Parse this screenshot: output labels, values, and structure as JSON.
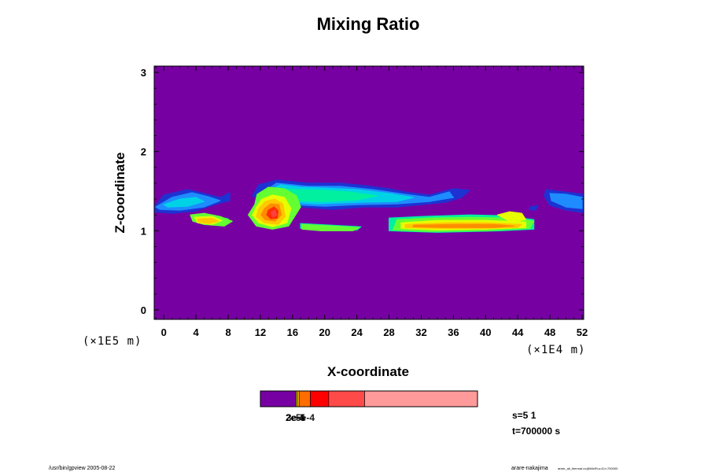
{
  "chart_data": {
    "type": "heatmap",
    "title": "Mixing Ratio",
    "xlabel": "X-coordinate",
    "ylabel": "Z-coordinate",
    "x_unit": "(×1E4 m)",
    "y_unit": "(×1E5 m)",
    "xlim": [
      -1.2,
      52.2
    ],
    "ylim": [
      -0.12,
      3.08
    ],
    "x_ticks": [
      0,
      4,
      8,
      12,
      16,
      20,
      24,
      28,
      32,
      36,
      40,
      44,
      48,
      52
    ],
    "x_tick_labels": [
      "0",
      "4",
      "8",
      "12",
      "16",
      "20",
      "24",
      "28",
      "32",
      "36",
      "40",
      "44",
      "48",
      "52"
    ],
    "y_ticks": [
      0,
      1,
      2,
      3
    ],
    "y_tick_labels": [
      "0",
      "1",
      "2",
      "3"
    ],
    "background_level_color": "#7700a3",
    "level_colors": [
      "#7700a3",
      "#1e32d2",
      "#1e8cff",
      "#00d2e6",
      "#00f0a0",
      "#64ff32",
      "#e6ff00",
      "#ffc800",
      "#ff8c00",
      "#ff2d00",
      "#ff4040",
      "#ff9999"
    ],
    "cloud_layers": [
      {
        "description_level": 0,
        "color": "#1e32d2",
        "polygons": [
          [
            [
              -1.2,
              1.3
            ],
            [
              0,
              1.45
            ],
            [
              3,
              1.52
            ],
            [
              5,
              1.47
            ],
            [
              7,
              1.42
            ],
            [
              8.2,
              1.48
            ],
            [
              8.2,
              1.38
            ],
            [
              6,
              1.32
            ],
            [
              4,
              1.25
            ],
            [
              1,
              1.22
            ],
            [
              -1.2,
              1.24
            ]
          ],
          [
            [
              11,
              1.44
            ],
            [
              11.8,
              1.58
            ],
            [
              14,
              1.64
            ],
            [
              18,
              1.6
            ],
            [
              22,
              1.6
            ],
            [
              25,
              1.57
            ],
            [
              28,
              1.53
            ],
            [
              30,
              1.49
            ],
            [
              33,
              1.45
            ],
            [
              36,
              1.53
            ],
            [
              38,
              1.51
            ],
            [
              37,
              1.42
            ],
            [
              35,
              1.36
            ],
            [
              32,
              1.33
            ],
            [
              29,
              1.3
            ],
            [
              25,
              1.3
            ],
            [
              21,
              1.27
            ],
            [
              17,
              1.3
            ],
            [
              13,
              1.36
            ]
          ],
          [
            [
              47.5,
              1.52
            ],
            [
              49,
              1.5
            ],
            [
              52.2,
              1.46
            ],
            [
              52.2,
              1.23
            ],
            [
              50,
              1.26
            ],
            [
              48,
              1.32
            ],
            [
              47.3,
              1.44
            ]
          ],
          [
            [
              45.6,
              1.3
            ],
            [
              46.5,
              1.32
            ],
            [
              46.2,
              1.26
            ],
            [
              45.4,
              1.27
            ]
          ]
        ]
      },
      {
        "description_level": 1,
        "color": "#1e8cff",
        "polygons": [
          [
            [
              -1,
              1.3
            ],
            [
              1,
              1.42
            ],
            [
              3.5,
              1.48
            ],
            [
              5.5,
              1.43
            ],
            [
              7,
              1.38
            ],
            [
              5,
              1.3
            ],
            [
              2,
              1.26
            ],
            [
              -0.5,
              1.27
            ]
          ],
          [
            [
              12,
              1.46
            ],
            [
              14,
              1.6
            ],
            [
              18,
              1.56
            ],
            [
              22,
              1.56
            ],
            [
              26,
              1.52
            ],
            [
              30,
              1.46
            ],
            [
              33,
              1.42
            ],
            [
              35.5,
              1.49
            ],
            [
              36,
              1.42
            ],
            [
              33,
              1.37
            ],
            [
              29,
              1.34
            ],
            [
              24,
              1.33
            ],
            [
              20,
              1.31
            ],
            [
              16,
              1.33
            ],
            [
              13,
              1.38
            ]
          ],
          [
            [
              48,
              1.47
            ],
            [
              50,
              1.46
            ],
            [
              52,
              1.42
            ],
            [
              52,
              1.28
            ],
            [
              50,
              1.3
            ],
            [
              48.2,
              1.38
            ]
          ]
        ]
      },
      {
        "description_level": 2,
        "color": "#00d2e6",
        "polygons": [
          [
            [
              13,
              1.5
            ],
            [
              14.5,
              1.58
            ],
            [
              17,
              1.55
            ],
            [
              20,
              1.54
            ],
            [
              24,
              1.52
            ],
            [
              28,
              1.47
            ],
            [
              31,
              1.42
            ],
            [
              29,
              1.37
            ],
            [
              24,
              1.36
            ],
            [
              19,
              1.34
            ],
            [
              15,
              1.37
            ],
            [
              13.2,
              1.42
            ]
          ],
          [
            [
              0,
              1.33
            ],
            [
              2,
              1.4
            ],
            [
              4,
              1.42
            ],
            [
              5,
              1.37
            ],
            [
              3,
              1.31
            ],
            [
              0.5,
              1.3
            ]
          ]
        ]
      },
      {
        "description_level": 3,
        "color": "#00f0a0",
        "polygons": [
          [
            [
              14.5,
              1.53
            ],
            [
              16.5,
              1.52
            ],
            [
              20,
              1.51
            ],
            [
              23,
              1.49
            ],
            [
              26.5,
              1.44
            ],
            [
              24,
              1.39
            ],
            [
              20,
              1.37
            ],
            [
              16.5,
              1.38
            ],
            [
              14.5,
              1.42
            ]
          ],
          [
            [
              3.5,
              1.18
            ],
            [
              6.5,
              1.18
            ],
            [
              8,
              1.15
            ],
            [
              7,
              1.08
            ],
            [
              4,
              1.11
            ]
          ],
          [
            [
              28,
              1.16
            ],
            [
              32,
              1.18
            ],
            [
              38,
              1.2
            ],
            [
              42,
              1.19
            ],
            [
              46,
              1.14
            ],
            [
              46,
              1.02
            ],
            [
              42,
              1.0
            ],
            [
              34,
              0.98
            ],
            [
              28,
              1.0
            ]
          ],
          [
            [
              17,
              1.09
            ],
            [
              21,
              1.07
            ],
            [
              24.5,
              1.05
            ],
            [
              24,
              1.01
            ],
            [
              20,
              1.01
            ],
            [
              17,
              1.03
            ]
          ]
        ]
      },
      {
        "description_level": 4,
        "color": "#64ff32",
        "polygons": [
          [
            [
              11.3,
              1.33
            ],
            [
              11.6,
              1.46
            ],
            [
              13,
              1.55
            ],
            [
              15,
              1.53
            ],
            [
              16.5,
              1.44
            ],
            [
              17,
              1.3
            ],
            [
              15.5,
              1.06
            ],
            [
              13.5,
              1.02
            ],
            [
              11.5,
              1.06
            ],
            [
              10.5,
              1.2
            ]
          ],
          [
            [
              29,
              1.14
            ],
            [
              33,
              1.16
            ],
            [
              38,
              1.17
            ],
            [
              43,
              1.16
            ],
            [
              46,
              1.12
            ],
            [
              45.5,
              1.03
            ],
            [
              40,
              1.0
            ],
            [
              33,
              0.99
            ],
            [
              28.5,
              1.01
            ]
          ],
          [
            [
              3.3,
              1.2
            ],
            [
              5,
              1.22
            ],
            [
              7,
              1.18
            ],
            [
              8.5,
              1.12
            ],
            [
              7.5,
              1.06
            ],
            [
              5,
              1.08
            ],
            [
              3.6,
              1.12
            ]
          ],
          [
            [
              17.2,
              1.08
            ],
            [
              21,
              1.06
            ],
            [
              24.3,
              1.04
            ],
            [
              23.5,
              1.0
            ],
            [
              19.5,
              1.0
            ],
            [
              17.2,
              1.02
            ]
          ]
        ]
      },
      {
        "description_level": 5,
        "color": "#e6ff00",
        "polygons": [
          [
            [
              11.5,
              1.3
            ],
            [
              12.2,
              1.4
            ],
            [
              13.5,
              1.45
            ],
            [
              15,
              1.42
            ],
            [
              15.8,
              1.28
            ],
            [
              15.3,
              1.1
            ],
            [
              13.5,
              1.05
            ],
            [
              11.8,
              1.1
            ],
            [
              11,
              1.2
            ]
          ],
          [
            [
              29.5,
              1.1
            ],
            [
              34,
              1.13
            ],
            [
              40,
              1.13
            ],
            [
              45,
              1.11
            ],
            [
              45,
              1.04
            ],
            [
              40,
              1.02
            ],
            [
              34,
              1.01
            ],
            [
              29.5,
              1.03
            ]
          ],
          [
            [
              3.8,
              1.17
            ],
            [
              6,
              1.18
            ],
            [
              7.2,
              1.13
            ],
            [
              6,
              1.08
            ],
            [
              4.2,
              1.1
            ]
          ],
          [
            [
              41.5,
              1.2
            ],
            [
              43,
              1.24
            ],
            [
              44.5,
              1.22
            ],
            [
              45,
              1.14
            ],
            [
              43.2,
              1.11
            ]
          ]
        ]
      },
      {
        "description_level": 6,
        "color": "#ffc800",
        "polygons": [
          [
            [
              11.8,
              1.28
            ],
            [
              12.6,
              1.37
            ],
            [
              13.8,
              1.4
            ],
            [
              14.8,
              1.34
            ],
            [
              15.1,
              1.18
            ],
            [
              14.2,
              1.08
            ],
            [
              12.5,
              1.1
            ],
            [
              11.5,
              1.18
            ]
          ],
          [
            [
              30,
              1.08
            ],
            [
              35,
              1.1
            ],
            [
              40,
              1.1
            ],
            [
              44.5,
              1.08
            ],
            [
              44,
              1.04
            ],
            [
              39,
              1.03
            ],
            [
              34,
              1.03
            ],
            [
              30,
              1.04
            ]
          ],
          [
            [
              4.2,
              1.15
            ],
            [
              6,
              1.16
            ],
            [
              6.8,
              1.12
            ],
            [
              5.6,
              1.09
            ],
            [
              4.3,
              1.11
            ]
          ]
        ]
      },
      {
        "description_level": 7,
        "color": "#ff8c00",
        "polygons": [
          [
            [
              12.5,
              1.28
            ],
            [
              13.3,
              1.34
            ],
            [
              14.3,
              1.33
            ],
            [
              14.6,
              1.2
            ],
            [
              13.8,
              1.12
            ],
            [
              12.6,
              1.14
            ],
            [
              12.1,
              1.2
            ]
          ],
          [
            [
              31,
              1.07
            ],
            [
              36,
              1.08
            ],
            [
              41,
              1.08
            ],
            [
              43.5,
              1.06
            ],
            [
              41,
              1.04
            ],
            [
              35,
              1.04
            ],
            [
              31,
              1.05
            ]
          ]
        ]
      },
      {
        "description_level": 8,
        "color": "#ff2d00",
        "polygons": [
          [
            [
              13,
              1.26
            ],
            [
              13.7,
              1.3
            ],
            [
              14.2,
              1.25
            ],
            [
              14.1,
              1.16
            ],
            [
              13.3,
              1.15
            ],
            [
              12.8,
              1.2
            ]
          ]
        ]
      },
      {
        "description_level": 9,
        "color": "#ff4040",
        "polygons": [
          [
            [
              13.3,
              1.23
            ],
            [
              13.8,
              1.26
            ],
            [
              14,
              1.2
            ],
            [
              13.6,
              1.17
            ]
          ]
        ]
      }
    ],
    "colorbar": {
      "segments": [
        {
          "color": "#7700a3",
          "fraction": 0.165
        },
        {
          "color": "#ffe100",
          "fraction": 0.006
        },
        {
          "color": "#ffb000",
          "fraction": 0.009
        },
        {
          "color": "#ff6d00",
          "fraction": 0.05
        },
        {
          "color": "#ff0000",
          "fraction": 0.085
        },
        {
          "color": "#ff4a4a",
          "fraction": 0.165
        },
        {
          "color": "#ff9a9a",
          "fraction": 0.52
        }
      ],
      "label_text": "3e-5",
      "label_text_overlap": "2e-4",
      "label_text_third": "5e-4"
    },
    "annotations": {
      "info_line1": "s=5 1",
      "info_line2": "t=700000 s"
    },
    "footer": {
      "left": "/usr/bin/gpview 2005-08-22",
      "right_main": "arare-nakajima",
      "right_small": "arare_all_thermal.nc@MixRt,s=5,t=700000"
    }
  }
}
